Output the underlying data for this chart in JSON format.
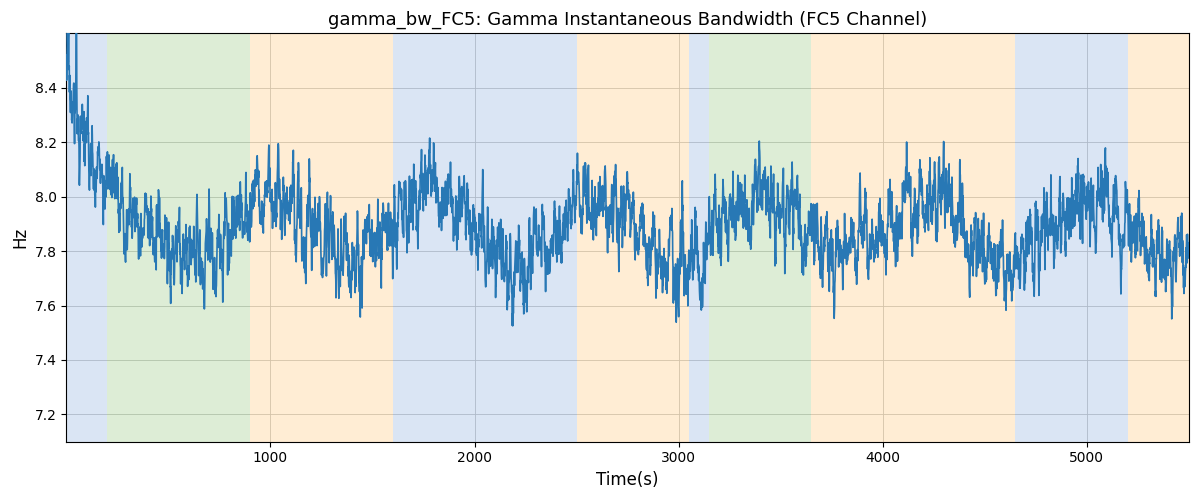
{
  "title": "gamma_bw_FC5: Gamma Instantaneous Bandwidth (FC5 Channel)",
  "xlabel": "Time(s)",
  "ylabel": "Hz",
  "xlim": [
    0,
    5500
  ],
  "ylim": [
    7.1,
    8.6
  ],
  "yticks": [
    7.2,
    7.4,
    7.6,
    7.8,
    8.0,
    8.2,
    8.4
  ],
  "xticks": [
    1000,
    2000,
    3000,
    4000,
    5000
  ],
  "line_color": "#2878b5",
  "line_width": 1.2,
  "background_color": "#ffffff",
  "grid_color": "#b0b0b0",
  "bands": [
    {
      "xmin": 0,
      "xmax": 200,
      "color": "#aec6e8",
      "alpha": 0.45
    },
    {
      "xmin": 200,
      "xmax": 900,
      "color": "#b5d9a5",
      "alpha": 0.45
    },
    {
      "xmin": 900,
      "xmax": 1600,
      "color": "#ffd9a0",
      "alpha": 0.45
    },
    {
      "xmin": 1600,
      "xmax": 2500,
      "color": "#aec6e8",
      "alpha": 0.45
    },
    {
      "xmin": 2500,
      "xmax": 3050,
      "color": "#ffd9a0",
      "alpha": 0.45
    },
    {
      "xmin": 3050,
      "xmax": 3150,
      "color": "#aec6e8",
      "alpha": 0.45
    },
    {
      "xmin": 3150,
      "xmax": 3650,
      "color": "#b5d9a5",
      "alpha": 0.45
    },
    {
      "xmin": 3650,
      "xmax": 4650,
      "color": "#ffd9a0",
      "alpha": 0.45
    },
    {
      "xmin": 4650,
      "xmax": 5200,
      "color": "#aec6e8",
      "alpha": 0.45
    },
    {
      "xmin": 5200,
      "xmax": 5500,
      "color": "#ffd9a0",
      "alpha": 0.45
    }
  ],
  "mean": 7.88,
  "slow_amp": 0.12,
  "slow_period": 800,
  "fast_std": 0.08,
  "ar_coef": 0.82,
  "initial_peak": 8.52,
  "initial_decay": 80
}
